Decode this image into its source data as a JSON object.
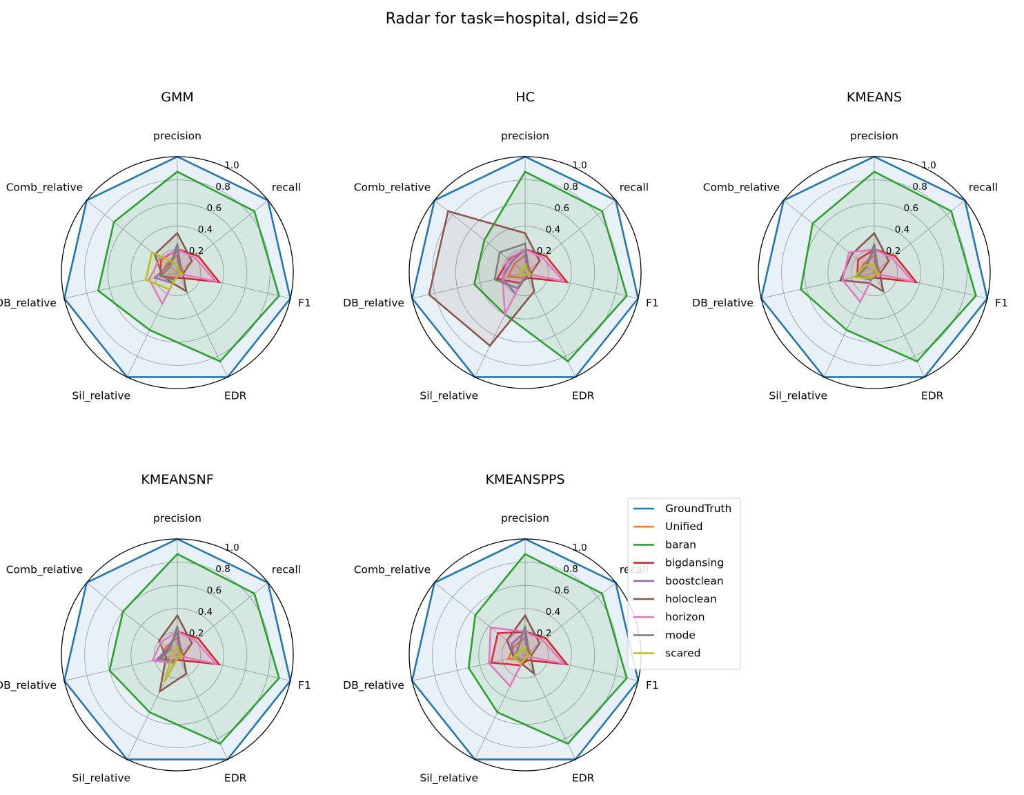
{
  "chart_data": {
    "type": "radar",
    "title": "Radar for task=hospital, dsid=26",
    "axes": [
      "precision",
      "recall",
      "F1",
      "EDR",
      "Sil_relative",
      "DB_relative",
      "Comb_relative"
    ],
    "rlim": [
      0,
      1.0
    ],
    "r_ticks": [
      "0.2",
      "0.4",
      "0.6",
      "0.8",
      "1.0"
    ],
    "grid": true,
    "legend_location": "right of the KMEANSPPS panel",
    "colors": {
      "GroundTruth": "#1f77b4",
      "Unified": "#ff7f0e",
      "baran": "#2ca02c",
      "bigdansing": "#d62728",
      "boostclean": "#9467bd",
      "holoclean": "#8c564b",
      "horizon": "#e377c2",
      "mode": "#7f7f7f",
      "scared": "#bcbd22"
    },
    "legend": [
      "GroundTruth",
      "Unified",
      "baran",
      "bigdansing",
      "boostclean",
      "holoclean",
      "horizon",
      "mode",
      "scared"
    ],
    "panels": [
      {
        "title": "GMM",
        "series": [
          {
            "name": "GroundTruth",
            "values": [
              1.0,
              1.0,
              1.0,
              1.0,
              1.0,
              1.0,
              1.0
            ]
          },
          {
            "name": "Unified",
            "values": [
              0.15,
              0.05,
              0.06,
              0.02,
              0.05,
              0.15,
              0.12
            ]
          },
          {
            "name": "baran",
            "values": [
              0.87,
              0.85,
              0.9,
              0.85,
              0.55,
              0.7,
              0.7
            ]
          },
          {
            "name": "bigdansing",
            "values": [
              0.2,
              0.23,
              0.37,
              0.05,
              0.05,
              0.15,
              0.18
            ]
          },
          {
            "name": "boostclean",
            "values": [
              0.2,
              0.02,
              0.04,
              0.03,
              0.1,
              0.2,
              0.1
            ]
          },
          {
            "name": "holoclean",
            "values": [
              0.34,
              0.16,
              0.05,
              0.18,
              0.1,
              0.13,
              0.25
            ]
          },
          {
            "name": "horizon",
            "values": [
              0.2,
              0.2,
              0.34,
              0.01,
              0.3,
              0.25,
              0.19
            ]
          },
          {
            "name": "mode",
            "values": [
              0.25,
              0.04,
              0.04,
              0.03,
              0.07,
              0.15,
              0.08
            ]
          },
          {
            "name": "scared",
            "values": [
              0.07,
              0.02,
              0.04,
              0.02,
              0.16,
              0.28,
              0.28
            ]
          }
        ]
      },
      {
        "title": "HC",
        "series": [
          {
            "name": "GroundTruth",
            "values": [
              1.0,
              1.0,
              1.0,
              1.0,
              1.0,
              1.0,
              1.0
            ]
          },
          {
            "name": "Unified",
            "values": [
              0.15,
              0.05,
              0.06,
              0.02,
              0.05,
              0.15,
              0.12
            ]
          },
          {
            "name": "baran",
            "values": [
              0.87,
              0.85,
              0.9,
              0.85,
              0.4,
              0.45,
              0.45
            ]
          },
          {
            "name": "bigdansing",
            "values": [
              0.2,
              0.23,
              0.37,
              0.05,
              0.1,
              0.25,
              0.18
            ]
          },
          {
            "name": "boostclean",
            "values": [
              0.2,
              0.02,
              0.04,
              0.03,
              0.2,
              0.2,
              0.15
            ]
          },
          {
            "name": "holoclean",
            "values": [
              0.34,
              0.16,
              0.05,
              0.18,
              0.7,
              0.85,
              0.85
            ]
          },
          {
            "name": "horizon",
            "values": [
              0.2,
              0.2,
              0.34,
              0.01,
              0.4,
              0.2,
              0.19
            ]
          },
          {
            "name": "mode",
            "values": [
              0.25,
              0.04,
              0.04,
              0.03,
              0.15,
              0.27,
              0.28
            ]
          },
          {
            "name": "scared",
            "values": [
              0.07,
              0.02,
              0.04,
              0.02,
              0.03,
              0.05,
              0.05
            ]
          }
        ]
      },
      {
        "title": "KMEANS",
        "series": [
          {
            "name": "GroundTruth",
            "values": [
              1.0,
              1.0,
              1.0,
              1.0,
              1.0,
              1.0,
              1.0
            ]
          },
          {
            "name": "Unified",
            "values": [
              0.15,
              0.05,
              0.06,
              0.02,
              0.05,
              0.15,
              0.12
            ]
          },
          {
            "name": "baran",
            "values": [
              0.87,
              0.85,
              0.9,
              0.85,
              0.55,
              0.65,
              0.68
            ]
          },
          {
            "name": "bigdansing",
            "values": [
              0.2,
              0.23,
              0.37,
              0.05,
              0.05,
              0.15,
              0.18
            ]
          },
          {
            "name": "boostclean",
            "values": [
              0.2,
              0.02,
              0.04,
              0.03,
              0.05,
              0.15,
              0.1
            ]
          },
          {
            "name": "holoclean",
            "values": [
              0.34,
              0.16,
              0.05,
              0.18,
              0.1,
              0.3,
              0.25
            ]
          },
          {
            "name": "horizon",
            "values": [
              0.2,
              0.2,
              0.34,
              0.01,
              0.28,
              0.28,
              0.28
            ]
          },
          {
            "name": "mode",
            "values": [
              0.25,
              0.04,
              0.04,
              0.03,
              0.07,
              0.15,
              0.08
            ]
          },
          {
            "name": "scared",
            "values": [
              0.07,
              0.02,
              0.04,
              0.02,
              0.05,
              0.18,
              0.1
            ]
          }
        ]
      },
      {
        "title": "KMEANSNF",
        "series": [
          {
            "name": "GroundTruth",
            "values": [
              1.0,
              1.0,
              1.0,
              1.0,
              1.0,
              1.0,
              1.0
            ]
          },
          {
            "name": "Unified",
            "values": [
              0.15,
              0.05,
              0.06,
              0.02,
              0.05,
              0.15,
              0.12
            ]
          },
          {
            "name": "baran",
            "values": [
              0.87,
              0.85,
              0.9,
              0.85,
              0.55,
              0.6,
              0.6
            ]
          },
          {
            "name": "bigdansing",
            "values": [
              0.2,
              0.23,
              0.37,
              0.05,
              0.05,
              0.15,
              0.1
            ]
          },
          {
            "name": "boostclean",
            "values": [
              0.2,
              0.02,
              0.04,
              0.03,
              0.05,
              0.18,
              0.1
            ]
          },
          {
            "name": "holoclean",
            "values": [
              0.34,
              0.16,
              0.05,
              0.18,
              0.35,
              0.1,
              0.2
            ]
          },
          {
            "name": "horizon",
            "values": [
              0.2,
              0.2,
              0.34,
              0.01,
              0.08,
              0.22,
              0.18
            ]
          },
          {
            "name": "mode",
            "values": [
              0.25,
              0.04,
              0.04,
              0.03,
              0.07,
              0.15,
              0.08
            ]
          },
          {
            "name": "scared",
            "values": [
              0.07,
              0.02,
              0.04,
              0.02,
              0.25,
              0.05,
              0.05
            ]
          }
        ]
      },
      {
        "title": "KMEANSPPS",
        "series": [
          {
            "name": "GroundTruth",
            "values": [
              1.0,
              1.0,
              1.0,
              1.0,
              1.0,
              1.0,
              1.0
            ]
          },
          {
            "name": "Unified",
            "values": [
              0.15,
              0.05,
              0.06,
              0.02,
              0.05,
              0.15,
              0.12
            ]
          },
          {
            "name": "baran",
            "values": [
              0.87,
              0.85,
              0.9,
              0.85,
              0.55,
              0.5,
              0.55
            ]
          },
          {
            "name": "bigdansing",
            "values": [
              0.2,
              0.23,
              0.37,
              0.05,
              0.1,
              0.3,
              0.3
            ]
          },
          {
            "name": "boostclean",
            "values": [
              0.2,
              0.02,
              0.04,
              0.03,
              0.05,
              0.1,
              0.15
            ]
          },
          {
            "name": "holoclean",
            "values": [
              0.34,
              0.16,
              0.05,
              0.18,
              0.08,
              0.1,
              0.2
            ]
          },
          {
            "name": "horizon",
            "values": [
              0.2,
              0.2,
              0.34,
              0.01,
              0.3,
              0.32,
              0.38
            ]
          },
          {
            "name": "mode",
            "values": [
              0.25,
              0.04,
              0.04,
              0.03,
              0.07,
              0.1,
              0.08
            ]
          },
          {
            "name": "scared",
            "values": [
              0.07,
              0.02,
              0.04,
              0.02,
              0.08,
              0.1,
              0.06
            ]
          }
        ]
      }
    ]
  }
}
